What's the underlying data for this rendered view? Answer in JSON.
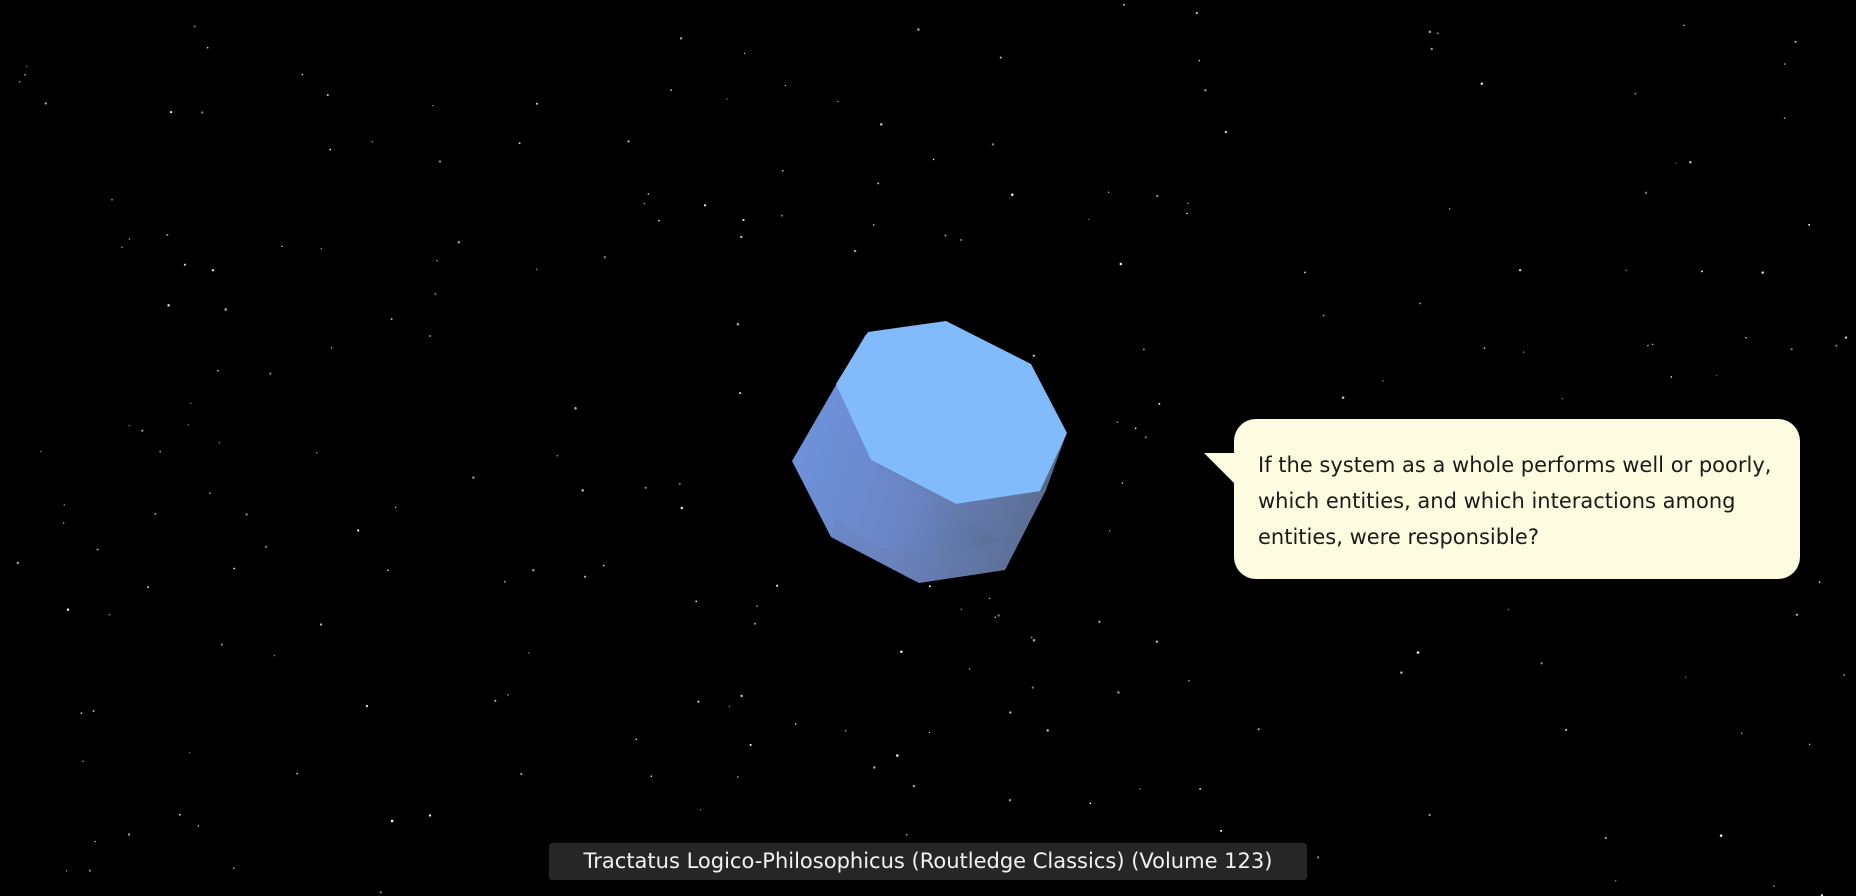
{
  "scene": {
    "background_color": "#000000",
    "star_color": "#ffffff",
    "object": {
      "shape": "octagonal-prism",
      "top_color": "#82bbfb",
      "side_color": "#6e8fd6",
      "side_dark_color": "#5a6e9a"
    }
  },
  "speech_bubble": {
    "text": "If the system as a whole performs well or poorly, which entities, and which interactions among entities, were responsible?",
    "background_color": "#fdfce0"
  },
  "caption": {
    "text": "Tractatus Logico-Philosophicus (Routledge Classics) (Volume 123)"
  }
}
